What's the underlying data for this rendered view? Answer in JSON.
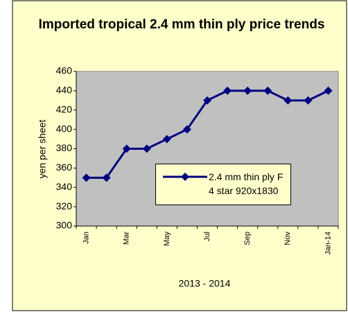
{
  "chart_data": {
    "type": "line",
    "title": "Imported tropical 2.4 mm thin ply price trends",
    "xlabel": "2013 - 2014",
    "ylabel": "yen per sheet",
    "categories": [
      "Jan",
      null,
      "Mar",
      null,
      "May",
      null,
      "Jul",
      null,
      "Sep",
      null,
      "Nov",
      null,
      "Jan-14"
    ],
    "series": [
      {
        "name": "2.4 mm thin ply F 4 star 920x1830",
        "color": "#000080",
        "values": [
          350,
          350,
          380,
          380,
          390,
          400,
          430,
          440,
          440,
          440,
          430,
          430,
          440
        ]
      }
    ],
    "ylim": [
      300,
      460
    ],
    "yticks": [
      300,
      320,
      340,
      360,
      380,
      400,
      420,
      440,
      460
    ],
    "plot_background": "#c0c0c0",
    "chart_background": "#ffffcc",
    "legend": "inside"
  }
}
